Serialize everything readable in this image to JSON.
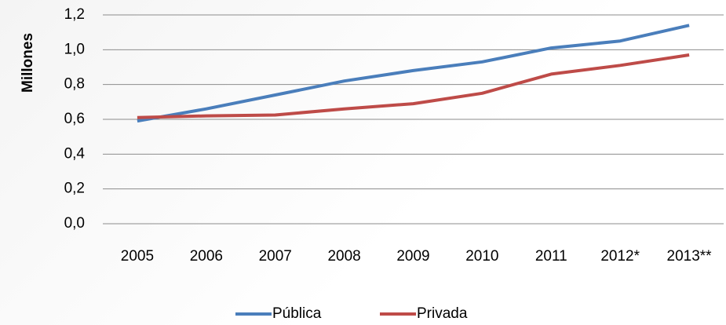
{
  "chart_data": {
    "type": "line",
    "y_label": "Millones",
    "categories": [
      "2005",
      "2006",
      "2007",
      "2008",
      "2009",
      "2010",
      "2011",
      "2012*",
      "2013**"
    ],
    "series": [
      {
        "name": "Pública",
        "color": "#4a7ebb",
        "values": [
          0.59,
          0.66,
          0.74,
          0.82,
          0.88,
          0.93,
          1.01,
          1.05,
          1.14
        ]
      },
      {
        "name": "Privada",
        "color": "#be4b48",
        "values": [
          0.61,
          0.62,
          0.625,
          0.66,
          0.69,
          0.75,
          0.86,
          0.91,
          0.97
        ]
      }
    ],
    "ylim": [
      0,
      1.2
    ],
    "yticks": [
      {
        "value": 0,
        "label": "0,0"
      },
      {
        "value": 0.2,
        "label": "0,2"
      },
      {
        "value": 0.4,
        "label": "0,4"
      },
      {
        "value": 0.6,
        "label": "0,6"
      },
      {
        "value": 0.8,
        "label": "0,8"
      },
      {
        "value": 1.0,
        "label": "1,0"
      },
      {
        "value": 1.2,
        "label": "1,2"
      }
    ],
    "grid": true,
    "legend": "bottom"
  }
}
